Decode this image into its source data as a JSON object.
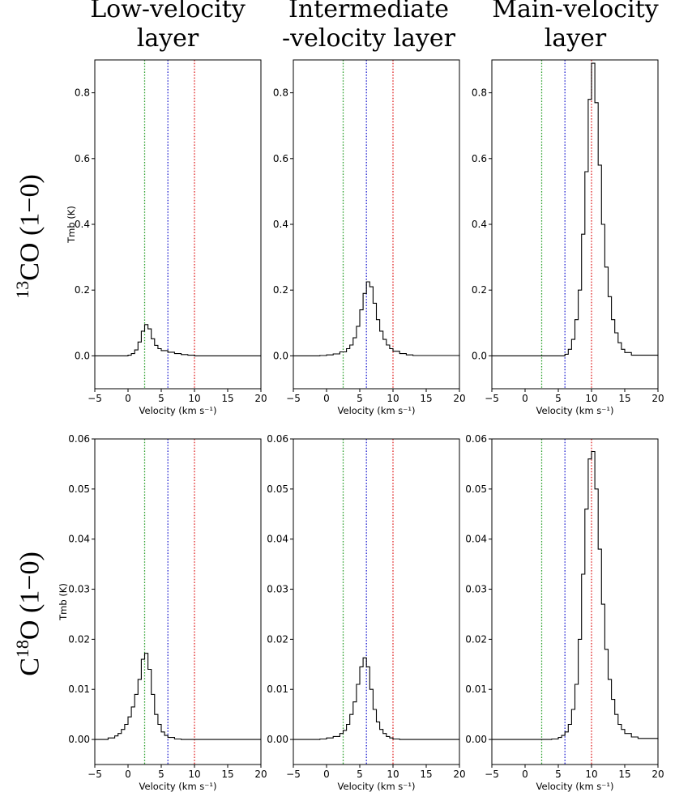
{
  "column_titles": [
    {
      "line1": "Low-velocity",
      "line2": "layer"
    },
    {
      "line1": "Intermediate",
      "line2": "-velocity layer"
    },
    {
      "line1": "Main-velocity",
      "line2": "layer"
    }
  ],
  "row_titles": [
    {
      "sup": "13",
      "main": "CO (1−0)",
      "prefix": ""
    },
    {
      "prefix": "C",
      "sup": "18",
      "main": "O (1−0)"
    }
  ],
  "colors": {
    "green": "#2ca02c",
    "blue": "#1f1fd0",
    "red": "#e02020",
    "line": "#000000"
  },
  "chart_data": [
    {
      "type": "line",
      "row": 0,
      "col": 0,
      "xlabel": "Velocity (km s⁻¹)",
      "ylabel": "Tmb (K)",
      "xlim": [
        -5,
        20
      ],
      "ylim": [
        -0.1,
        0.9
      ],
      "xticks": [
        -5,
        0,
        5,
        10,
        15,
        20
      ],
      "xticklabels": [
        "−5",
        "0",
        "5",
        "10",
        "15",
        "20"
      ],
      "yticks": [
        0.0,
        0.2,
        0.4,
        0.6,
        0.8
      ],
      "yticklabels": [
        "0.0",
        "0.2",
        "0.4",
        "0.6",
        "0.8"
      ],
      "vlines": [
        {
          "x": 2.5,
          "color": "green"
        },
        {
          "x": 6.0,
          "color": "blue"
        },
        {
          "x": 10.0,
          "color": "red"
        }
      ],
      "x": [
        -5,
        -3,
        -1,
        0,
        0.5,
        1,
        1.5,
        2,
        2.5,
        3,
        3.5,
        4,
        4.5,
        5,
        6,
        7,
        8,
        9,
        10,
        20
      ],
      "y": [
        0,
        0,
        0,
        0.002,
        0.007,
        0.018,
        0.042,
        0.075,
        0.095,
        0.082,
        0.052,
        0.032,
        0.022,
        0.016,
        0.011,
        0.007,
        0.004,
        0.002,
        0,
        0
      ]
    },
    {
      "type": "line",
      "row": 0,
      "col": 1,
      "xlabel": "Velocity (km s⁻¹)",
      "ylabel": "",
      "xlim": [
        -5,
        20
      ],
      "ylim": [
        -0.1,
        0.9
      ],
      "xticks": [
        -5,
        0,
        5,
        10,
        15,
        20
      ],
      "xticklabels": [
        "−5",
        "0",
        "5",
        "10",
        "15",
        "20"
      ],
      "yticks": [
        0.0,
        0.2,
        0.4,
        0.6,
        0.8
      ],
      "yticklabels": [
        "0.0",
        "0.2",
        "0.4",
        "0.6",
        "0.8"
      ],
      "vlines": [
        {
          "x": 2.5,
          "color": "green"
        },
        {
          "x": 6.0,
          "color": "blue"
        },
        {
          "x": 10.0,
          "color": "red"
        }
      ],
      "x": [
        -5,
        -1,
        0,
        1,
        2,
        3,
        3.5,
        4,
        4.5,
        5,
        5.5,
        6,
        6.5,
        7,
        7.5,
        8,
        8.5,
        9,
        9.5,
        10,
        11,
        12,
        13,
        20
      ],
      "y": [
        0,
        0.001,
        0.003,
        0.006,
        0.012,
        0.022,
        0.033,
        0.055,
        0.09,
        0.14,
        0.19,
        0.225,
        0.21,
        0.16,
        0.11,
        0.075,
        0.05,
        0.033,
        0.022,
        0.014,
        0.007,
        0.003,
        0.001,
        0
      ]
    },
    {
      "type": "line",
      "row": 0,
      "col": 2,
      "xlabel": "Velocity (km s⁻¹)",
      "ylabel": "",
      "xlim": [
        -5,
        20
      ],
      "ylim": [
        -0.1,
        0.9
      ],
      "xticks": [
        -5,
        0,
        5,
        10,
        15,
        20
      ],
      "xticklabels": [
        "−5",
        "0",
        "5",
        "10",
        "15",
        "20"
      ],
      "yticks": [
        0.0,
        0.2,
        0.4,
        0.6,
        0.8
      ],
      "yticklabels": [
        "0.0",
        "0.2",
        "0.4",
        "0.6",
        "0.8"
      ],
      "vlines": [
        {
          "x": 2.5,
          "color": "green"
        },
        {
          "x": 6.0,
          "color": "blue"
        },
        {
          "x": 10.0,
          "color": "red"
        }
      ],
      "x": [
        -5,
        5,
        6,
        6.5,
        7,
        7.5,
        8,
        8.5,
        9,
        9.5,
        10,
        10.5,
        11,
        11.5,
        12,
        12.5,
        13,
        13.5,
        14,
        14.5,
        15,
        16,
        20
      ],
      "y": [
        0,
        0,
        0.005,
        0.02,
        0.05,
        0.11,
        0.2,
        0.37,
        0.56,
        0.78,
        0.89,
        0.77,
        0.58,
        0.4,
        0.27,
        0.18,
        0.11,
        0.07,
        0.04,
        0.02,
        0.01,
        0.002,
        0
      ]
    },
    {
      "type": "line",
      "row": 1,
      "col": 0,
      "xlabel": "Velocity (km s⁻¹)",
      "ylabel": "Tmb (K)",
      "xlim": [
        -5,
        20
      ],
      "ylim": [
        -0.005,
        0.06
      ],
      "xticks": [
        -5,
        0,
        5,
        10,
        15,
        20
      ],
      "xticklabels": [
        "−5",
        "0",
        "5",
        "10",
        "15",
        "20"
      ],
      "yticks": [
        0.0,
        0.01,
        0.02,
        0.03,
        0.04,
        0.05,
        0.06
      ],
      "yticklabels": [
        "0.00",
        "0.01",
        "0.02",
        "0.03",
        "0.04",
        "0.05",
        "0.06"
      ],
      "vlines": [
        {
          "x": 2.5,
          "color": "green"
        },
        {
          "x": 6.0,
          "color": "blue"
        },
        {
          "x": 10.0,
          "color": "red"
        }
      ],
      "x": [
        -5,
        -3,
        -2,
        -1.5,
        -1,
        -0.5,
        0,
        0.5,
        1,
        1.5,
        2,
        2.5,
        3,
        3.5,
        4,
        4.5,
        5,
        5.5,
        6,
        7,
        8,
        20
      ],
      "y": [
        0,
        0.0003,
        0.0007,
        0.0012,
        0.002,
        0.003,
        0.0045,
        0.0065,
        0.009,
        0.012,
        0.016,
        0.0172,
        0.014,
        0.009,
        0.005,
        0.003,
        0.0015,
        0.0008,
        0.0004,
        0.0001,
        0,
        0
      ]
    },
    {
      "type": "line",
      "row": 1,
      "col": 1,
      "xlabel": "Velocity (km s⁻¹)",
      "ylabel": "",
      "xlim": [
        -5,
        20
      ],
      "ylim": [
        -0.005,
        0.06
      ],
      "xticks": [
        -5,
        0,
        5,
        10,
        15,
        20
      ],
      "xticklabels": [
        "−5",
        "0",
        "5",
        "10",
        "15",
        "20"
      ],
      "yticks": [
        0.0,
        0.01,
        0.02,
        0.03,
        0.04,
        0.05,
        0.06
      ],
      "yticklabels": [
        "0.00",
        "0.01",
        "0.02",
        "0.03",
        "0.04",
        "0.05",
        "0.06"
      ],
      "vlines": [
        {
          "x": 2.5,
          "color": "green"
        },
        {
          "x": 6.0,
          "color": "blue"
        },
        {
          "x": 10.0,
          "color": "red"
        }
      ],
      "x": [
        -5,
        -1,
        0,
        1,
        2,
        2.5,
        3,
        3.5,
        4,
        4.5,
        5,
        5.5,
        6,
        6.5,
        7,
        7.5,
        8,
        8.5,
        9,
        9.5,
        10,
        11,
        20
      ],
      "y": [
        0,
        0.0001,
        0.0003,
        0.0006,
        0.0012,
        0.0018,
        0.003,
        0.005,
        0.0075,
        0.011,
        0.0145,
        0.0163,
        0.0145,
        0.01,
        0.006,
        0.0035,
        0.002,
        0.0012,
        0.0006,
        0.0003,
        0.0001,
        0,
        0
      ]
    },
    {
      "type": "line",
      "row": 1,
      "col": 2,
      "xlabel": "Velocity (km s⁻¹)",
      "ylabel": "",
      "xlim": [
        -5,
        20
      ],
      "ylim": [
        -0.005,
        0.06
      ],
      "xticks": [
        -5,
        0,
        5,
        10,
        15,
        20
      ],
      "xticklabels": [
        "−5",
        "0",
        "5",
        "10",
        "15",
        "20"
      ],
      "yticks": [
        0.0,
        0.01,
        0.02,
        0.03,
        0.04,
        0.05,
        0.06
      ],
      "yticklabels": [
        "0.00",
        "0.01",
        "0.02",
        "0.03",
        "0.04",
        "0.05",
        "0.06"
      ],
      "vlines": [
        {
          "x": 2.5,
          "color": "green"
        },
        {
          "x": 6.0,
          "color": "blue"
        },
        {
          "x": 10.0,
          "color": "red"
        }
      ],
      "x": [
        -5,
        4,
        5,
        5.5,
        6,
        6.5,
        7,
        7.5,
        8,
        8.5,
        9,
        9.5,
        10,
        10.5,
        11,
        11.5,
        12,
        12.5,
        13,
        13.5,
        14,
        14.5,
        15,
        16,
        17,
        20
      ],
      "y": [
        0,
        0.0001,
        0.0004,
        0.0008,
        0.0015,
        0.003,
        0.006,
        0.011,
        0.02,
        0.033,
        0.046,
        0.056,
        0.0575,
        0.05,
        0.038,
        0.027,
        0.018,
        0.012,
        0.008,
        0.005,
        0.003,
        0.002,
        0.0012,
        0.0005,
        0.0002,
        0
      ]
    }
  ]
}
